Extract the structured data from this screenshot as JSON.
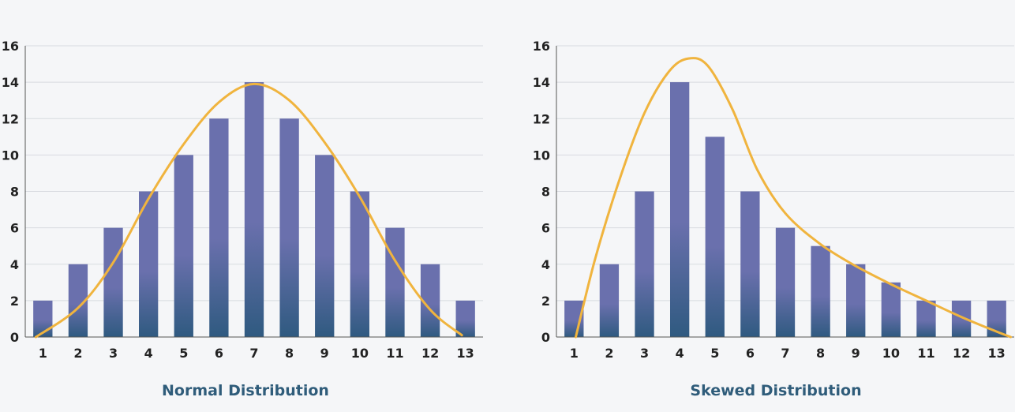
{
  "chart_data": [
    {
      "type": "bar",
      "title": "Normal Distribution",
      "categories": [
        "1",
        "2",
        "3",
        "4",
        "5",
        "6",
        "7",
        "8",
        "9",
        "10",
        "11",
        "12",
        "13"
      ],
      "values": [
        2,
        4,
        6,
        8,
        10,
        12,
        14,
        12,
        10,
        8,
        6,
        4,
        2
      ],
      "curve": [
        [
          0.8,
          0.0
        ],
        [
          2.0,
          1.6
        ],
        [
          3.0,
          4.1
        ],
        [
          4.0,
          7.6
        ],
        [
          5.0,
          10.6
        ],
        [
          6.0,
          12.9
        ],
        [
          7.0,
          13.9
        ],
        [
          8.0,
          13.0
        ],
        [
          9.0,
          10.7
        ],
        [
          10.0,
          7.7
        ],
        [
          11.0,
          4.2
        ],
        [
          12.0,
          1.5
        ],
        [
          12.9,
          0.1
        ]
      ],
      "ylim": [
        0,
        16
      ],
      "yticks": [
        0,
        2,
        4,
        6,
        8,
        10,
        12,
        14,
        16
      ],
      "xlabel": "",
      "ylabel": "",
      "grid": true
    },
    {
      "type": "bar",
      "title": "Skewed Distribution",
      "categories": [
        "1",
        "2",
        "3",
        "4",
        "5",
        "6",
        "7",
        "8",
        "9",
        "10",
        "11",
        "12",
        "13"
      ],
      "values": [
        2,
        4,
        8,
        14,
        11,
        8,
        6,
        5,
        4,
        3,
        2,
        2,
        2
      ],
      "curve": [
        [
          1.05,
          0.0
        ],
        [
          1.6,
          4.3
        ],
        [
          2.3,
          8.7
        ],
        [
          3.0,
          12.3
        ],
        [
          3.7,
          14.6
        ],
        [
          4.25,
          15.3
        ],
        [
          4.8,
          14.9
        ],
        [
          5.5,
          12.5
        ],
        [
          6.2,
          9.2
        ],
        [
          7.0,
          6.8
        ],
        [
          8.0,
          5.1
        ],
        [
          9.0,
          3.9
        ],
        [
          10.0,
          2.9
        ],
        [
          11.0,
          2.0
        ],
        [
          12.0,
          1.1
        ],
        [
          13.0,
          0.3
        ],
        [
          13.4,
          0.0
        ]
      ],
      "ylim": [
        0,
        16
      ],
      "yticks": [
        0,
        2,
        4,
        6,
        8,
        10,
        12,
        14,
        16
      ],
      "xlabel": "",
      "ylabel": "",
      "grid": true
    }
  ],
  "colors": {
    "bar_top": "#6a70ad",
    "bar_bottom": "#2f5a80",
    "curve": "#f0b43e",
    "axis": "#555555",
    "grid": "#d8dbe0",
    "title": "#2f5c7a"
  }
}
